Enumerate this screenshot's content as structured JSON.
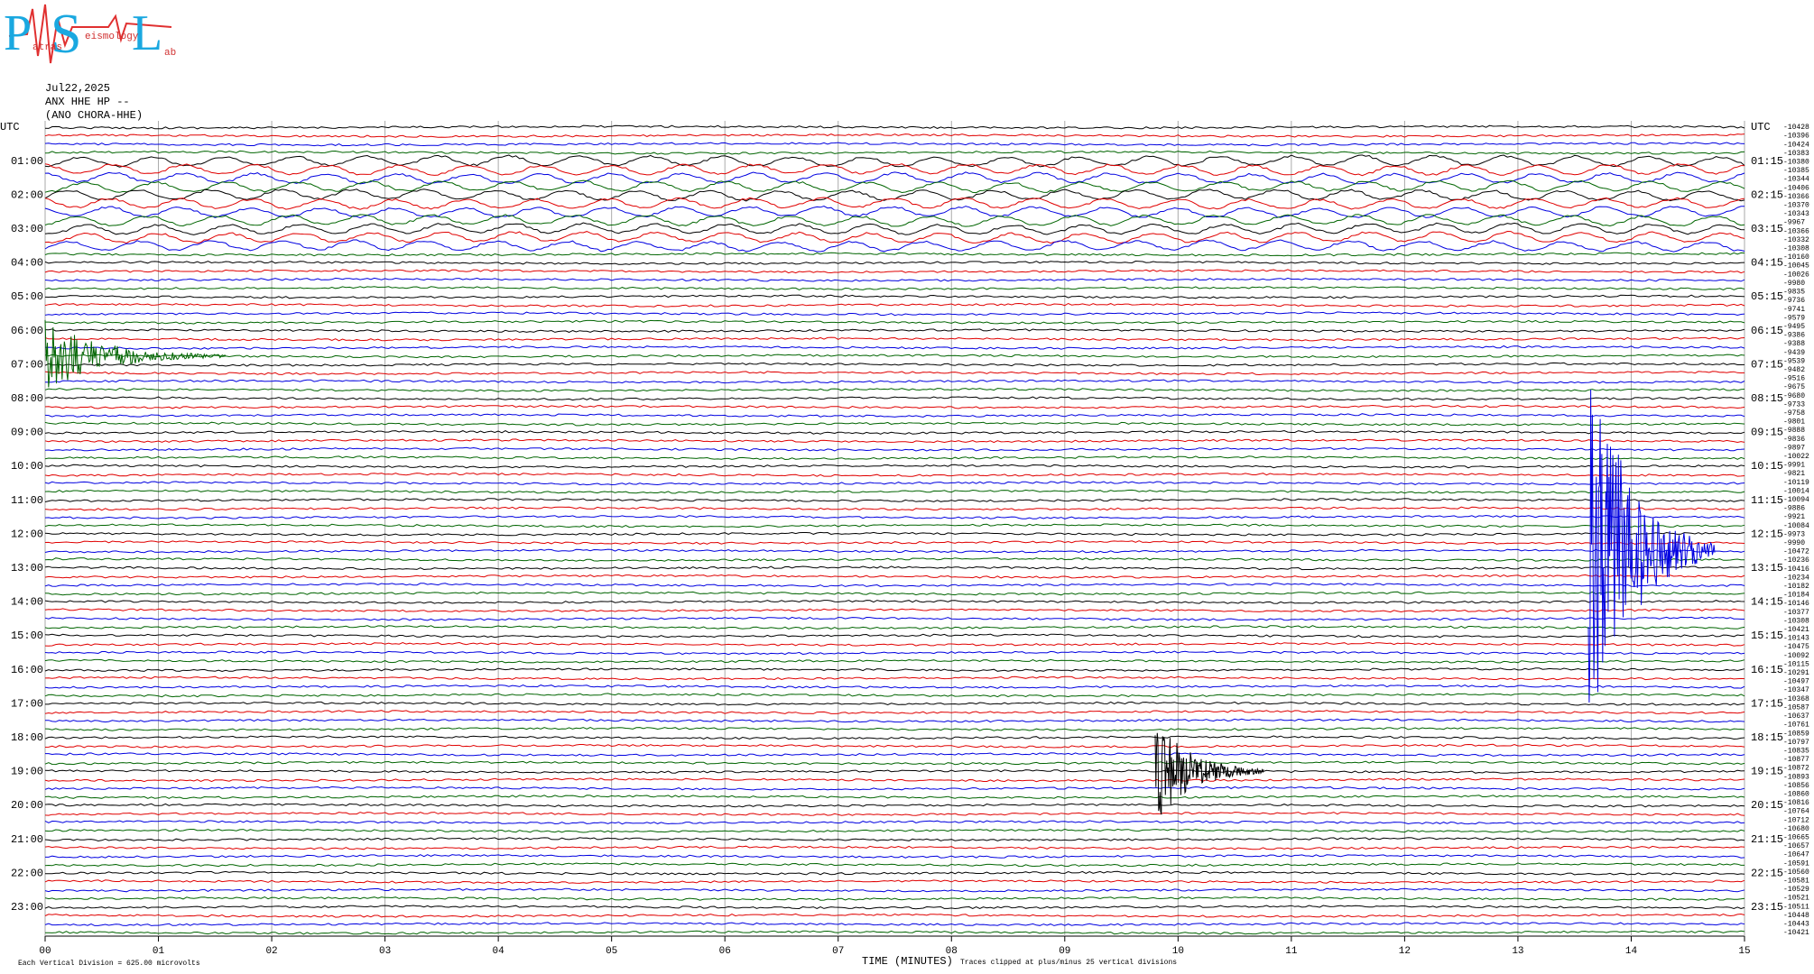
{
  "logo": {
    "letters": [
      "P",
      "S",
      "L"
    ],
    "words": [
      "atras",
      "eismology",
      "ab"
    ]
  },
  "header": {
    "date": "Jul22,2025",
    "channel": "ANX HHE HP --",
    "station": "(ANO CHORA-HHE)"
  },
  "chart_data": {
    "type": "helicorder",
    "left_labels": [
      "UTC",
      "01:00",
      "02:00",
      "03:00",
      "04:00",
      "05:00",
      "06:00",
      "07:00",
      "08:00",
      "09:00",
      "10:00",
      "11:00",
      "12:00",
      "13:00",
      "14:00",
      "15:00",
      "16:00",
      "17:00",
      "18:00",
      "19:00",
      "20:00",
      "21:00",
      "22:00",
      "23:00"
    ],
    "right_labels": [
      "UTC",
      "01:15",
      "02:15",
      "03:15",
      "04:15",
      "05:15",
      "06:15",
      "07:15",
      "08:15",
      "09:15",
      "10:15",
      "11:15",
      "12:15",
      "13:15",
      "14:15",
      "15:15",
      "16:15",
      "17:15",
      "18:15",
      "19:15",
      "20:15",
      "21:15",
      "22:15",
      "23:15"
    ],
    "trace_values": [
      -10428,
      -10396,
      -10424,
      -10383,
      -10380,
      -10385,
      -10344,
      -10406,
      -10366,
      -10370,
      -10343,
      -9967,
      -10366,
      -10332,
      -10308,
      -10160,
      -10045,
      -10026,
      -9980,
      -9835,
      -9736,
      -9741,
      -9579,
      -9495,
      -9386,
      -9388,
      -9439,
      -9539,
      -9482,
      -9516,
      -9675,
      -9680,
      -9733,
      -9758,
      -9801,
      -9888,
      -9836,
      -9897,
      -10022,
      -9991,
      -9821,
      -10119,
      -10014,
      -10094,
      -9886,
      -9921,
      -10084,
      -9973,
      -9990,
      -10472,
      -10236,
      -10416,
      -10234,
      -10182,
      -10184,
      -10146,
      -10377,
      -10308,
      -10421,
      -10143,
      -10475,
      -10092,
      -10115,
      -10291,
      -10497,
      -10347,
      -10368,
      -10587,
      -10637,
      -10761,
      -10859,
      -10797,
      -10835,
      -10877,
      -10872,
      -10893,
      -10856,
      -10860,
      -10816,
      -10764,
      -10712,
      -10680,
      -10665,
      -10657,
      -10647,
      -10591,
      -10560,
      -10581,
      -10529,
      -10521,
      -10511,
      -10448,
      -10443,
      -10421
    ],
    "xlabel": "TIME (MINUTES)",
    "xlim": [
      0,
      15
    ],
    "xticks": [
      {
        "value": 0,
        "label": "00"
      },
      {
        "value": 1,
        "label": "01"
      },
      {
        "value": 2,
        "label": "02"
      },
      {
        "value": 3,
        "label": "03"
      },
      {
        "value": 4,
        "label": "04"
      },
      {
        "value": 5,
        "label": "05"
      },
      {
        "value": 6,
        "label": "06"
      },
      {
        "value": 7,
        "label": "07"
      },
      {
        "value": 8,
        "label": "08"
      },
      {
        "value": 9,
        "label": "09"
      },
      {
        "value": 10,
        "label": "10"
      },
      {
        "value": 11,
        "label": "11"
      },
      {
        "value": 12,
        "label": "12"
      },
      {
        "value": 13,
        "label": "13"
      },
      {
        "value": 14,
        "label": "14"
      },
      {
        "value": 15,
        "label": "15"
      }
    ],
    "colors": [
      "#000000",
      "#e00000",
      "#0000e0",
      "#006400"
    ],
    "grid": true
  },
  "footer": {
    "scale": "Each Vertical Division =  625.00 microvolts",
    "clip": "Traces clipped at plus/minus 25 vertical divisions"
  }
}
